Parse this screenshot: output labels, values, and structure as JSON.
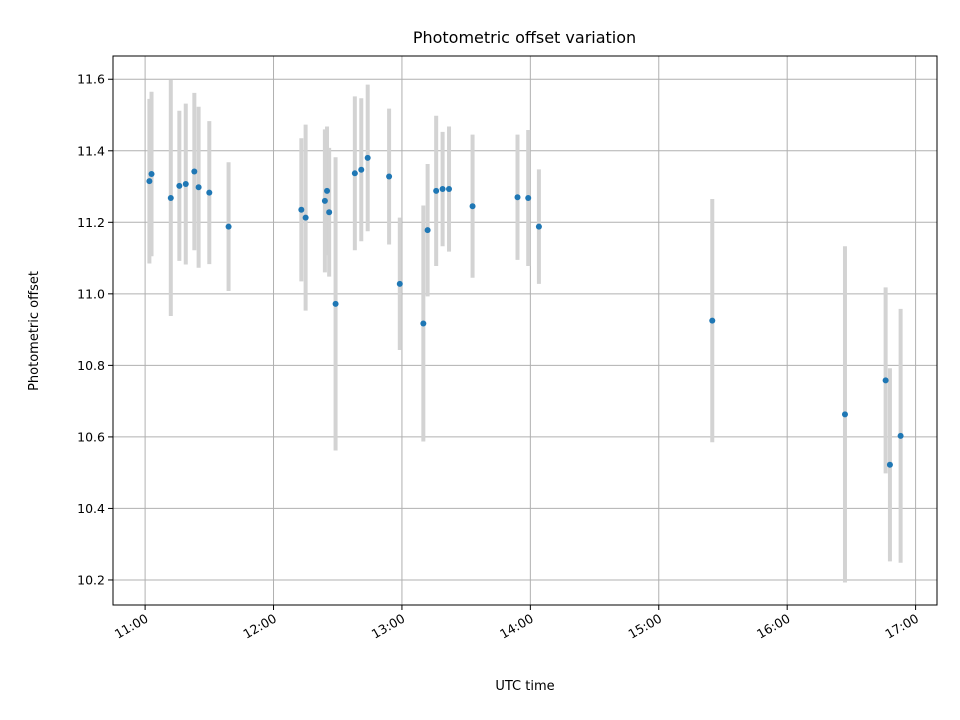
{
  "chart_data": {
    "type": "scatter",
    "title": "Photometric offset variation",
    "xlabel": "UTC time",
    "ylabel": "Photometric offset",
    "x_ticks": [
      "11:00",
      "12:00",
      "13:00",
      "14:00",
      "15:00",
      "16:00",
      "17:00"
    ],
    "y_ticks": [
      "10.2",
      "10.4",
      "10.6",
      "10.8",
      "11.0",
      "11.2",
      "11.4",
      "11.6"
    ],
    "xlim": [
      "10:45",
      "17:10"
    ],
    "ylim": [
      10.13,
      11.665
    ],
    "grid": true,
    "errorbar_color": "#d3d3d3",
    "point_color": "#1f77b4",
    "points": [
      {
        "x": "11:02",
        "y": 11.315,
        "err": 0.23
      },
      {
        "x": "11:03",
        "y": 11.335,
        "err": 0.23
      },
      {
        "x": "11:12",
        "y": 11.268,
        "err": 0.33
      },
      {
        "x": "11:16",
        "y": 11.302,
        "err": 0.21
      },
      {
        "x": "11:19",
        "y": 11.307,
        "err": 0.225
      },
      {
        "x": "11:23",
        "y": 11.342,
        "err": 0.22
      },
      {
        "x": "11:25",
        "y": 11.298,
        "err": 0.225
      },
      {
        "x": "11:30",
        "y": 11.283,
        "err": 0.2
      },
      {
        "x": "11:39",
        "y": 11.188,
        "err": 0.18
      },
      {
        "x": "12:13",
        "y": 11.235,
        "err": 0.2
      },
      {
        "x": "12:15",
        "y": 11.213,
        "err": 0.26
      },
      {
        "x": "12:24",
        "y": 11.26,
        "err": 0.2
      },
      {
        "x": "12:25",
        "y": 11.288,
        "err": 0.18
      },
      {
        "x": "12:26",
        "y": 11.228,
        "err": 0.18
      },
      {
        "x": "12:29",
        "y": 10.972,
        "err": 0.41
      },
      {
        "x": "12:38",
        "y": 11.337,
        "err": 0.215
      },
      {
        "x": "12:41",
        "y": 11.347,
        "err": 0.2
      },
      {
        "x": "12:44",
        "y": 11.38,
        "err": 0.205
      },
      {
        "x": "12:54",
        "y": 11.328,
        "err": 0.19
      },
      {
        "x": "12:59",
        "y": 11.028,
        "err": 0.185
      },
      {
        "x": "13:10",
        "y": 10.917,
        "err": 0.33
      },
      {
        "x": "13:12",
        "y": 11.178,
        "err": 0.185
      },
      {
        "x": "13:16",
        "y": 11.288,
        "err": 0.21
      },
      {
        "x": "13:19",
        "y": 11.293,
        "err": 0.16
      },
      {
        "x": "13:22",
        "y": 11.293,
        "err": 0.175
      },
      {
        "x": "13:33",
        "y": 11.245,
        "err": 0.2
      },
      {
        "x": "13:54",
        "y": 11.27,
        "err": 0.175
      },
      {
        "x": "13:59",
        "y": 11.268,
        "err": 0.19
      },
      {
        "x": "14:04",
        "y": 11.188,
        "err": 0.16
      },
      {
        "x": "15:25",
        "y": 10.925,
        "err": 0.34
      },
      {
        "x": "16:27",
        "y": 10.663,
        "err": 0.47
      },
      {
        "x": "16:46",
        "y": 10.758,
        "err": 0.26
      },
      {
        "x": "16:48",
        "y": 10.522,
        "err": 0.27
      },
      {
        "x": "16:53",
        "y": 10.603,
        "err": 0.355
      }
    ]
  }
}
